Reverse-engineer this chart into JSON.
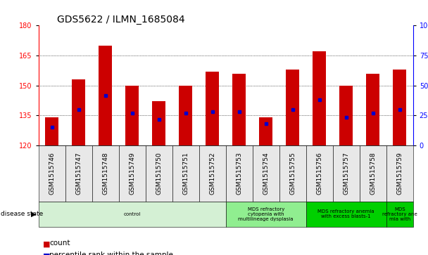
{
  "title": "GDS5622 / ILMN_1685084",
  "samples": [
    "GSM1515746",
    "GSM1515747",
    "GSM1515748",
    "GSM1515749",
    "GSM1515750",
    "GSM1515751",
    "GSM1515752",
    "GSM1515753",
    "GSM1515754",
    "GSM1515755",
    "GSM1515756",
    "GSM1515757",
    "GSM1515758",
    "GSM1515759"
  ],
  "bar_bottoms": [
    120,
    120,
    120,
    120,
    120,
    120,
    120,
    120,
    120,
    120,
    120,
    120,
    120,
    120
  ],
  "bar_tops": [
    134,
    153,
    170,
    150,
    142,
    150,
    157,
    156,
    134,
    158,
    167,
    150,
    156,
    158
  ],
  "percentile_values": [
    129,
    138,
    145,
    136,
    133,
    136,
    137,
    137,
    131,
    138,
    143,
    134,
    136,
    138
  ],
  "ylim_left": [
    120,
    180
  ],
  "ylim_right": [
    0,
    100
  ],
  "yticks_left": [
    120,
    135,
    150,
    165,
    180
  ],
  "yticks_right": [
    0,
    25,
    50,
    75,
    100
  ],
  "bar_color": "#cc0000",
  "percentile_color": "#0000cc",
  "bg_color": "#ffffff",
  "disease_groups": [
    {
      "label": "control",
      "start": 0,
      "end": 7,
      "color": "#d4f0d4"
    },
    {
      "label": "MDS refractory\ncytopenia with\nmultilineage dysplasia",
      "start": 7,
      "end": 10,
      "color": "#90ee90"
    },
    {
      "label": "MDS refractory anemia\nwith excess blasts-1",
      "start": 10,
      "end": 13,
      "color": "#00d000"
    },
    {
      "label": "MDS\nrefractory ane\nmia with",
      "start": 13,
      "end": 14,
      "color": "#00cc00"
    }
  ],
  "legend_count": "count",
  "legend_percentile": "percentile rank within the sample",
  "title_fontsize": 10,
  "tick_fontsize": 7,
  "label_fontsize": 7.5
}
